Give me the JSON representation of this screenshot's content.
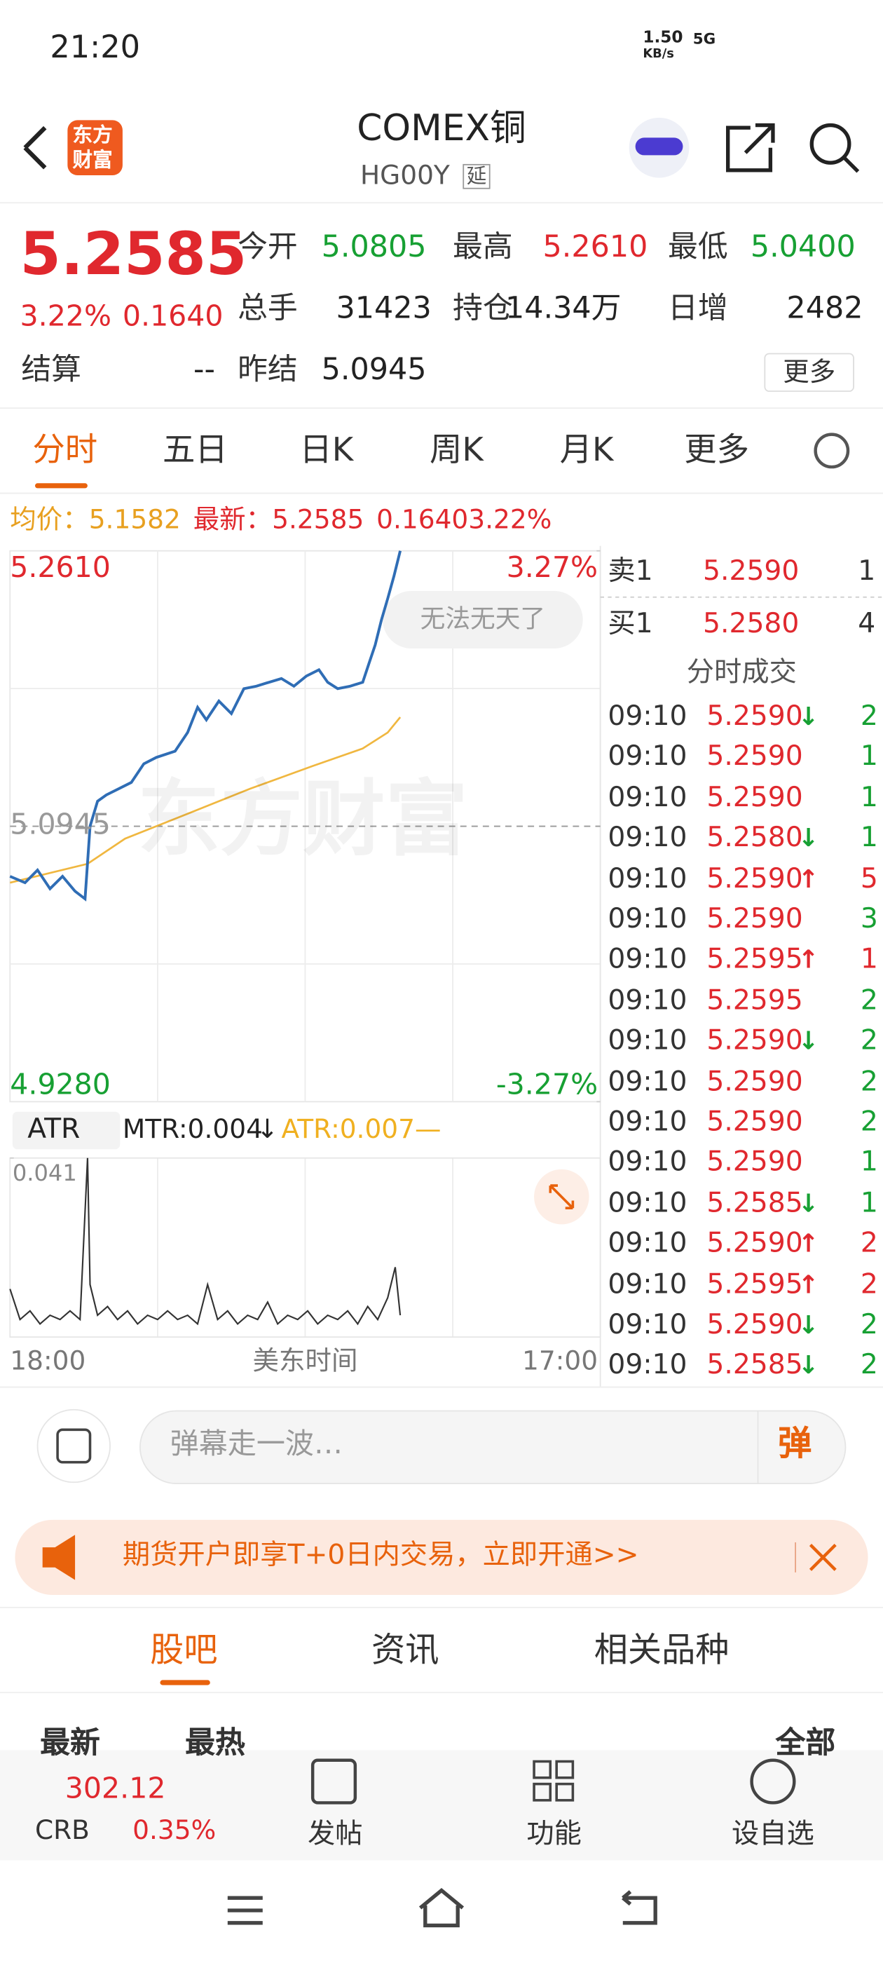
{
  "status_bar": {
    "time": "21:20",
    "net_speed": "1.50",
    "net_unit": "KB/s",
    "signal": "5G"
  },
  "header": {
    "logo": [
      "东方",
      "财富"
    ],
    "title": "COMEX铜",
    "code": "HG00Y",
    "delay": "延"
  },
  "quote": {
    "price": "5.2585",
    "change_pct": "3.22%",
    "change": "0.1640",
    "fields": [
      {
        "label": "今开",
        "value": "5.0805"
      },
      {
        "label": "最高",
        "value": "5.2610"
      },
      {
        "label": "最低",
        "value": "5.0400"
      },
      {
        "label": "总手",
        "value": "31423"
      },
      {
        "label": "持仓",
        "value": "14.34万"
      },
      {
        "label": "日增",
        "value": "2482"
      },
      {
        "label": "结算",
        "value": "--"
      },
      {
        "label": "昨结",
        "value": "5.0945"
      }
    ],
    "more": "更多"
  },
  "tabs": [
    "分时",
    "五日",
    "日K",
    "周K",
    "月K",
    "更多"
  ],
  "info": {
    "avg_label": "均价：",
    "avg": "5.1582",
    "last_label": "最新：",
    "last": "5.2585",
    "change": "0.1640",
    "change_pct": "3.22%"
  },
  "chart_data": {
    "type": "line",
    "xlim": [
      0,
      472
    ],
    "ylim": [
      4.928,
      5.261
    ],
    "yticks": [
      {
        "value": 5.261,
        "label": "5.2610"
      },
      {
        "value": 5.0945,
        "label": "5.0945"
      },
      {
        "value": 4.928,
        "label": "4.9280"
      }
    ],
    "y2lim": [
      -3.27,
      3.27
    ],
    "y2ticks": [
      {
        "value": 3.27,
        "label": "3.27%"
      },
      {
        "value": -3.27,
        "label": "-3.27%"
      }
    ],
    "x_labels": [
      "18:00",
      "美东时间",
      "17:00"
    ],
    "watermark": "东方财富",
    "series": [
      {
        "color": "#2f6db5",
        "x": [
          0,
          12,
          22,
          32,
          42,
          52,
          60,
          64,
          70,
          77,
          87,
          97,
          107,
          117,
          132,
          142,
          150,
          157,
          167,
          177,
          187,
          197,
          207,
          217,
          227,
          237,
          247,
          254,
          262,
          272,
          282,
          287,
          292,
          297,
          302,
          307,
          312
        ],
        "values": [
          5.0642,
          5.0604,
          5.068,
          5.0567,
          5.0642,
          5.0552,
          5.0506,
          5.0945,
          5.1096,
          5.1134,
          5.1172,
          5.121,
          5.1323,
          5.1361,
          5.1399,
          5.1512,
          5.1664,
          5.1588,
          5.1702,
          5.1626,
          5.1777,
          5.1792,
          5.1815,
          5.1838,
          5.1792,
          5.1853,
          5.1891,
          5.1815,
          5.1777,
          5.1792,
          5.1815,
          5.1929,
          5.2042,
          5.2193,
          5.2322,
          5.2458,
          5.261
        ]
      },
      {
        "color": "#f0b740",
        "x": [
          0,
          62,
          92,
          142,
          192,
          242,
          282,
          302,
          312
        ],
        "values": [
          5.0604,
          5.0718,
          5.087,
          5.1021,
          5.1172,
          5.1309,
          5.1415,
          5.1512,
          5.1604
        ]
      }
    ]
  },
  "toast": "无法无天了",
  "atr": {
    "type": "line",
    "indicator": "ATR",
    "mtr": "MTR:0.004",
    "mtr_dir": "↓",
    "atr": "ATR:0.007—",
    "ylim": [
      0,
      0.041
    ],
    "yticks": [
      {
        "value": 0.041,
        "label": "0.041"
      }
    ],
    "xlim": [
      0,
      472
    ],
    "x": [
      0,
      8,
      16,
      24,
      32,
      40,
      48,
      56,
      62,
      64,
      70,
      78,
      86,
      94,
      102,
      110,
      118,
      126,
      134,
      142,
      150,
      158,
      166,
      174,
      182,
      190,
      198,
      206,
      214,
      222,
      230,
      238,
      246,
      254,
      262,
      270,
      278,
      286,
      294,
      302,
      308,
      312
    ],
    "values": [
      0.011,
      0.004,
      0.006,
      0.003,
      0.005,
      0.004,
      0.006,
      0.004,
      0.041,
      0.012,
      0.005,
      0.007,
      0.004,
      0.006,
      0.003,
      0.005,
      0.004,
      0.006,
      0.004,
      0.005,
      0.003,
      0.012,
      0.004,
      0.006,
      0.003,
      0.005,
      0.004,
      0.008,
      0.003,
      0.005,
      0.004,
      0.006,
      0.003,
      0.005,
      0.004,
      0.006,
      0.003,
      0.007,
      0.004,
      0.009,
      0.016,
      0.005
    ]
  },
  "order_book": [
    {
      "label": "卖1",
      "price": "5.2590",
      "vol": "1"
    },
    {
      "label": "买1",
      "price": "5.2580",
      "vol": "4"
    }
  ],
  "trades": {
    "title": "分时成交",
    "rows": [
      {
        "time": "09:10",
        "price": "5.2590",
        "dir": "↓",
        "vol": "2"
      },
      {
        "time": "09:10",
        "price": "5.2590",
        "vol": "1"
      },
      {
        "time": "09:10",
        "price": "5.2590",
        "vol": "1"
      },
      {
        "time": "09:10",
        "price": "5.2580",
        "dir": "↓",
        "vol": "1"
      },
      {
        "time": "09:10",
        "price": "5.2590",
        "dir": "↑",
        "vol": "5"
      },
      {
        "time": "09:10",
        "price": "5.2590",
        "vol": "3"
      },
      {
        "time": "09:10",
        "price": "5.2595",
        "dir": "↑",
        "vol": "1"
      },
      {
        "time": "09:10",
        "price": "5.2595",
        "vol": "2"
      },
      {
        "time": "09:10",
        "price": "5.2590",
        "dir": "↓",
        "vol": "2"
      },
      {
        "time": "09:10",
        "price": "5.2590",
        "vol": "2"
      },
      {
        "time": "09:10",
        "price": "5.2590",
        "vol": "2"
      },
      {
        "time": "09:10",
        "price": "5.2590",
        "vol": "1"
      },
      {
        "time": "09:10",
        "price": "5.2585",
        "dir": "↓",
        "vol": "1"
      },
      {
        "time": "09:10",
        "price": "5.2590",
        "dir": "↑",
        "vol": "2"
      },
      {
        "time": "09:10",
        "price": "5.2595",
        "dir": "↑",
        "vol": "2"
      },
      {
        "time": "09:10",
        "price": "5.2590",
        "dir": "↓",
        "vol": "2"
      },
      {
        "time": "09:10",
        "price": "5.2585",
        "dir": "↓",
        "vol": "2"
      }
    ]
  },
  "comment": {
    "placeholder": "弹幕走一波…",
    "button": "弹"
  },
  "banner": "期货开户即享T+0日内交易，立即开通>>",
  "bottom_tabs": [
    "股吧",
    "资讯",
    "相关品种"
  ],
  "sub_tabs": [
    "最新",
    "最热",
    "全部"
  ],
  "nav": {
    "index_value": "302.12",
    "index_name": "CRB",
    "index_change": "0.35%",
    "items": [
      "发帖",
      "功能",
      "设自选"
    ]
  }
}
